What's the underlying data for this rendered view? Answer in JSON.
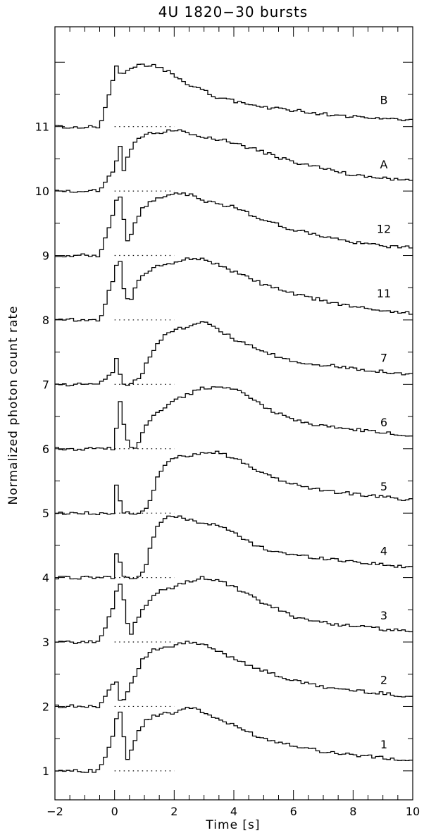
{
  "chart_data": {
    "type": "line",
    "title": "4U 1820−30 bursts",
    "xlabel": "Time [s]",
    "ylabel": "Normalized photon count rate",
    "xlim": [
      -2,
      10
    ],
    "ylim": [
      0.55,
      12.55
    ],
    "x_ticks": [
      {
        "value": -2,
        "label": "−2"
      },
      {
        "value": 0,
        "label": "0"
      },
      {
        "value": 2,
        "label": "2"
      },
      {
        "value": 4,
        "label": "4"
      },
      {
        "value": 6,
        "label": "6"
      },
      {
        "value": 8,
        "label": "8"
      },
      {
        "value": 10,
        "label": "10"
      }
    ],
    "y_ticks": [
      {
        "value": 1,
        "label": "1"
      },
      {
        "value": 2,
        "label": "2"
      },
      {
        "value": 3,
        "label": "3"
      },
      {
        "value": 4,
        "label": "4"
      },
      {
        "value": 5,
        "label": "5"
      },
      {
        "value": 6,
        "label": "6"
      },
      {
        "value": 7,
        "label": "7"
      },
      {
        "value": 8,
        "label": "8"
      },
      {
        "value": 9,
        "label": "9"
      },
      {
        "value": 10,
        "label": "10"
      },
      {
        "value": 11,
        "label": "11"
      }
    ],
    "baseline_dotted_range": [
      0,
      2
    ],
    "bin_width": 0.125,
    "series": [
      {
        "name": "1",
        "baseline": 1,
        "x": [
          -2,
          -0.5,
          0,
          0.1,
          0.2,
          0.3,
          0.4,
          0.5,
          0.6,
          0.8,
          1.0,
          1.3,
          1.6,
          2.0,
          2.5,
          3.0,
          3.5,
          4.0,
          5.0,
          6.0,
          7.0,
          8.0,
          9.0,
          10.0
        ],
        "y": [
          1.0,
          1.0,
          1.6,
          1.9,
          1.9,
          1.6,
          1.2,
          1.15,
          1.4,
          1.6,
          1.75,
          1.85,
          1.9,
          1.9,
          2.0,
          1.9,
          1.8,
          1.7,
          1.5,
          1.4,
          1.3,
          1.25,
          1.2,
          1.15
        ]
      },
      {
        "name": "2",
        "baseline": 2,
        "x": [
          -2,
          -0.5,
          0,
          0.1,
          0.2,
          0.3,
          0.5,
          0.7,
          0.9,
          1.2,
          1.5,
          1.8,
          2.0,
          2.5,
          3.0,
          3.5,
          4.0,
          5.0,
          6.0,
          7.0,
          8.0,
          9.0,
          10.0
        ],
        "y": [
          2.0,
          2.0,
          2.4,
          2.4,
          2.05,
          2.1,
          2.3,
          2.5,
          2.7,
          2.85,
          2.9,
          2.9,
          2.95,
          3.0,
          2.95,
          2.85,
          2.75,
          2.55,
          2.4,
          2.3,
          2.25,
          2.2,
          2.15
        ]
      },
      {
        "name": "3",
        "baseline": 3,
        "x": [
          -2,
          -0.5,
          0,
          0.1,
          0.2,
          0.3,
          0.4,
          0.5,
          0.6,
          0.8,
          1.0,
          1.3,
          1.6,
          2.0,
          2.5,
          3.0,
          3.5,
          4.0,
          5.0,
          6.0,
          7.0,
          8.0,
          9.0,
          10.0
        ],
        "y": [
          3.0,
          3.0,
          3.6,
          3.9,
          3.9,
          3.7,
          3.4,
          3.05,
          3.2,
          3.4,
          3.55,
          3.7,
          3.8,
          3.85,
          3.95,
          4.0,
          3.95,
          3.85,
          3.6,
          3.4,
          3.3,
          3.25,
          3.2,
          3.15
        ]
      },
      {
        "name": "4",
        "baseline": 4,
        "x": [
          -2,
          -0.5,
          0,
          0.1,
          0.2,
          0.3,
          0.5,
          0.8,
          1.0,
          1.2,
          1.4,
          1.6,
          1.8,
          2.0,
          2.5,
          3.0,
          3.5,
          4.0,
          4.5,
          5.0,
          6.0,
          7.0,
          8.0,
          9.0,
          10.0
        ],
        "y": [
          4.0,
          4.0,
          4.0,
          4.6,
          4.2,
          4.0,
          4.0,
          4.0,
          4.1,
          4.5,
          4.75,
          4.9,
          4.95,
          4.95,
          4.9,
          4.85,
          4.8,
          4.7,
          4.55,
          4.45,
          4.35,
          4.3,
          4.25,
          4.2,
          4.15
        ]
      },
      {
        "name": "5",
        "baseline": 5,
        "x": [
          -2,
          -0.5,
          0,
          0.1,
          0.2,
          0.3,
          0.5,
          0.7,
          1.0,
          1.2,
          1.4,
          1.6,
          1.8,
          2.0,
          2.5,
          3.0,
          3.5,
          4.0,
          4.5,
          5.0,
          6.0,
          7.0,
          8.0,
          9.0,
          10.0
        ],
        "y": [
          5.0,
          5.0,
          5.0,
          5.7,
          5.1,
          5.0,
          5.0,
          5.0,
          5.05,
          5.2,
          5.5,
          5.7,
          5.8,
          5.85,
          5.9,
          5.95,
          5.95,
          5.85,
          5.75,
          5.6,
          5.45,
          5.35,
          5.3,
          5.25,
          5.2
        ]
      },
      {
        "name": "6",
        "baseline": 6,
        "x": [
          -2,
          -0.5,
          0,
          0.1,
          0.2,
          0.3,
          0.5,
          0.7,
          0.9,
          1.1,
          1.4,
          1.7,
          2.0,
          2.5,
          3.0,
          3.5,
          4.0,
          4.5,
          5.0,
          6.0,
          7.0,
          8.0,
          9.0,
          10.0
        ],
        "y": [
          6.0,
          6.0,
          6.0,
          6.5,
          6.75,
          6.4,
          6.0,
          6.0,
          6.2,
          6.4,
          6.55,
          6.65,
          6.75,
          6.85,
          6.95,
          6.95,
          6.95,
          6.8,
          6.65,
          6.45,
          6.35,
          6.3,
          6.25,
          6.2
        ]
      },
      {
        "name": "7",
        "baseline": 7,
        "x": [
          -2,
          -0.5,
          -0.1,
          0,
          0.1,
          0.2,
          0.3,
          0.5,
          0.7,
          0.9,
          1.1,
          1.4,
          1.7,
          2.0,
          2.5,
          3.0,
          3.5,
          4.0,
          5.0,
          6.0,
          7.0,
          8.0,
          9.0,
          10.0
        ],
        "y": [
          7.0,
          7.0,
          7.2,
          7.2,
          7.55,
          7.1,
          7.0,
          7.0,
          7.05,
          7.15,
          7.35,
          7.6,
          7.8,
          7.85,
          7.9,
          8.0,
          7.85,
          7.7,
          7.5,
          7.35,
          7.3,
          7.25,
          7.2,
          7.15
        ]
      },
      {
        "name": "11",
        "baseline": 8,
        "x": [
          -2,
          -0.5,
          0,
          0.1,
          0.2,
          0.3,
          0.4,
          0.5,
          0.6,
          0.8,
          1.0,
          1.3,
          1.6,
          2.0,
          2.5,
          3.0,
          3.5,
          4.0,
          5.0,
          6.0,
          7.0,
          8.0,
          9.0,
          10.0
        ],
        "y": [
          8.0,
          8.0,
          8.7,
          8.95,
          8.9,
          8.5,
          8.35,
          8.25,
          8.4,
          8.6,
          8.7,
          8.8,
          8.85,
          8.9,
          8.95,
          8.95,
          8.85,
          8.75,
          8.55,
          8.4,
          8.3,
          8.2,
          8.15,
          8.1
        ]
      },
      {
        "name": "12",
        "baseline": 9,
        "x": [
          -2,
          -0.5,
          0,
          0.1,
          0.2,
          0.3,
          0.4,
          0.5,
          0.7,
          0.9,
          1.2,
          1.5,
          1.8,
          2.0,
          2.5,
          3.0,
          3.5,
          4.0,
          5.0,
          6.0,
          7.0,
          8.0,
          9.0,
          10.0
        ],
        "y": [
          9.0,
          9.0,
          9.7,
          9.95,
          9.9,
          9.6,
          9.25,
          9.25,
          9.5,
          9.7,
          9.85,
          9.9,
          9.95,
          9.95,
          9.95,
          9.85,
          9.8,
          9.75,
          9.55,
          9.4,
          9.3,
          9.2,
          9.15,
          9.12
        ]
      },
      {
        "name": "A",
        "baseline": 10,
        "x": [
          -2,
          -0.5,
          0,
          0.1,
          0.2,
          0.3,
          0.4,
          0.5,
          0.7,
          0.9,
          1.2,
          1.5,
          1.8,
          2.0,
          2.5,
          3.0,
          3.5,
          4.0,
          5.0,
          6.0,
          7.0,
          8.0,
          9.0,
          10.0
        ],
        "y": [
          10.0,
          10.0,
          10.35,
          10.5,
          10.75,
          10.3,
          10.5,
          10.6,
          10.75,
          10.85,
          10.9,
          10.9,
          10.95,
          10.95,
          10.9,
          10.85,
          10.8,
          10.75,
          10.6,
          10.45,
          10.35,
          10.25,
          10.2,
          10.15
        ]
      },
      {
        "name": "B",
        "baseline": 11,
        "x": [
          -2,
          -0.5,
          0,
          0.1,
          0.2,
          0.3,
          0.4,
          0.6,
          0.8,
          1.0,
          1.3,
          1.6,
          2.0,
          2.5,
          3.0,
          3.5,
          4.0,
          5.0,
          6.0,
          7.0,
          8.0,
          9.0,
          10.0
        ],
        "y": [
          11.0,
          11.0,
          11.8,
          12.0,
          11.8,
          11.8,
          11.85,
          11.9,
          11.95,
          11.95,
          11.95,
          11.9,
          11.8,
          11.65,
          11.55,
          11.45,
          11.4,
          11.3,
          11.25,
          11.2,
          11.15,
          11.12,
          11.1
        ]
      }
    ]
  }
}
